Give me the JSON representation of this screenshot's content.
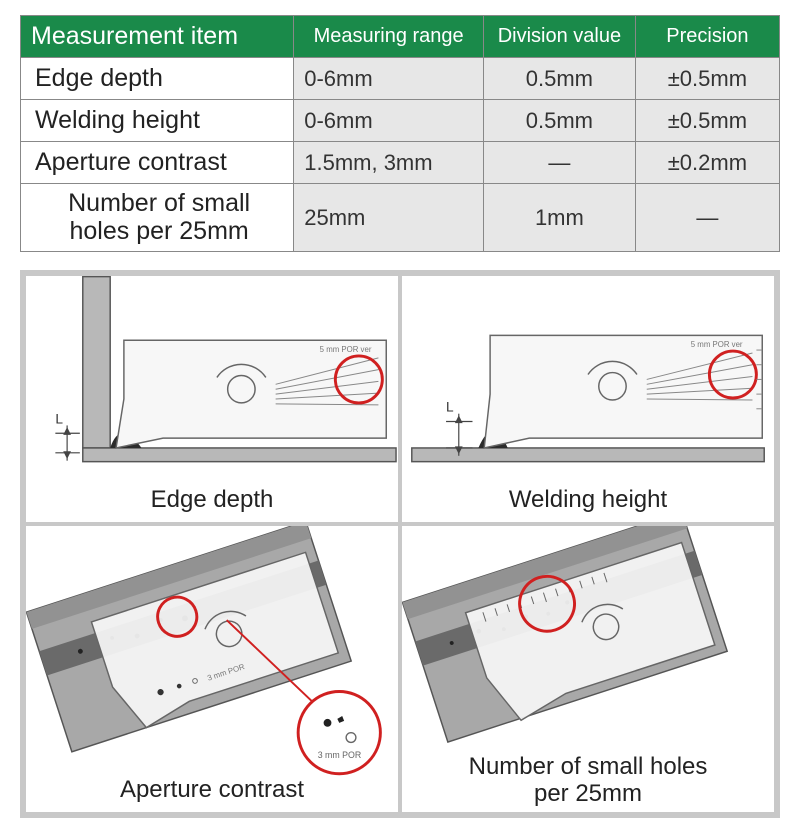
{
  "table": {
    "header_bg": "#1a8a4a",
    "header_fg": "#ffffff",
    "data_bg": "#e7e7e7",
    "border_color": "#888888",
    "columns": [
      "Measurement item",
      "Measuring range",
      "Division value",
      "Precision"
    ],
    "rows": [
      [
        "Edge depth",
        "0-6mm",
        "0.5mm",
        "±0.5mm"
      ],
      [
        "Welding height",
        "0-6mm",
        "0.5mm",
        "±0.5mm"
      ],
      [
        "Aperture contrast",
        "1.5mm, 3mm",
        "—",
        "±0.2mm"
      ],
      [
        "Number of small holes per 25mm",
        "25mm",
        "1mm",
        "—"
      ]
    ]
  },
  "diagram": {
    "frame_color": "#c8c8c8",
    "cells": {
      "edge_depth": {
        "caption": "Edge depth"
      },
      "welding_height": {
        "caption": "Welding height"
      },
      "aperture_contrast": {
        "caption": "Aperture contrast"
      },
      "small_holes": {
        "caption": "Number of small holes\nper 25mm"
      }
    },
    "colors": {
      "steel_fill": "#b0b0b0",
      "gauge_fill": "#f5f5f5",
      "gauge_stroke": "#555555",
      "weld_fill": "#2b2b2b",
      "base_fill": "#9a9a9a",
      "highlight_stroke": "#d02020",
      "dim_stroke": "#444444",
      "tick_stroke": "#888888"
    }
  }
}
